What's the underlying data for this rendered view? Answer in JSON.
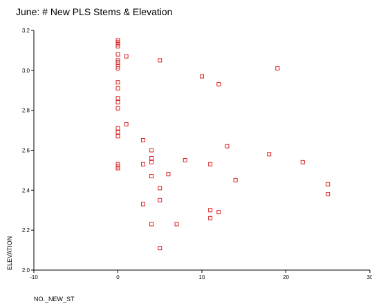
{
  "chart_data": {
    "type": "scatter",
    "title": "June: # New PLS Stems & Elevation",
    "xlabel": "NO._NEW_ST",
    "ylabel": "ELEVATION",
    "xlim": [
      -10,
      30
    ],
    "ylim": [
      2.0,
      3.2
    ],
    "xticks": [
      -10,
      0,
      10,
      20,
      30
    ],
    "xtick_labels": [
      "-10",
      "0",
      "10",
      "20",
      "30"
    ],
    "yticks": [
      2.0,
      2.2,
      2.4,
      2.6,
      2.8,
      3.0,
      3.2
    ],
    "ytick_labels": [
      "2.0",
      "2.2",
      "2.4",
      "2.6",
      "2.8",
      "3.0",
      "3.2"
    ],
    "grid": false,
    "marker": "hollow-square",
    "marker_color": "#e02020",
    "points": [
      [
        0,
        3.15
      ],
      [
        0,
        3.14
      ],
      [
        0,
        3.13
      ],
      [
        0,
        3.12
      ],
      [
        0,
        3.08
      ],
      [
        0,
        3.05
      ],
      [
        0,
        3.04
      ],
      [
        0,
        3.02
      ],
      [
        0,
        3.01
      ],
      [
        0,
        2.94
      ],
      [
        0,
        2.91
      ],
      [
        0,
        2.86
      ],
      [
        0,
        2.84
      ],
      [
        0,
        2.81
      ],
      [
        0,
        2.71
      ],
      [
        0,
        2.69
      ],
      [
        0,
        2.67
      ],
      [
        0,
        2.53
      ],
      [
        0,
        2.52
      ],
      [
        0,
        2.51
      ],
      [
        1,
        3.07
      ],
      [
        1,
        2.73
      ],
      [
        3,
        2.65
      ],
      [
        3,
        2.53
      ],
      [
        3,
        2.33
      ],
      [
        4,
        2.6
      ],
      [
        4,
        2.56
      ],
      [
        4,
        2.54
      ],
      [
        4,
        2.47
      ],
      [
        4,
        2.23
      ],
      [
        5,
        3.05
      ],
      [
        5,
        2.41
      ],
      [
        5,
        2.35
      ],
      [
        5,
        2.11
      ],
      [
        6,
        2.48
      ],
      [
        7,
        2.23
      ],
      [
        8,
        2.55
      ],
      [
        10,
        2.97
      ],
      [
        11,
        2.53
      ],
      [
        11,
        2.3
      ],
      [
        11,
        2.26
      ],
      [
        12,
        2.93
      ],
      [
        12,
        2.29
      ],
      [
        13,
        2.62
      ],
      [
        14,
        2.45
      ],
      [
        18,
        2.58
      ],
      [
        19,
        3.01
      ],
      [
        22,
        2.54
      ],
      [
        25,
        2.43
      ],
      [
        25,
        2.38
      ]
    ]
  }
}
